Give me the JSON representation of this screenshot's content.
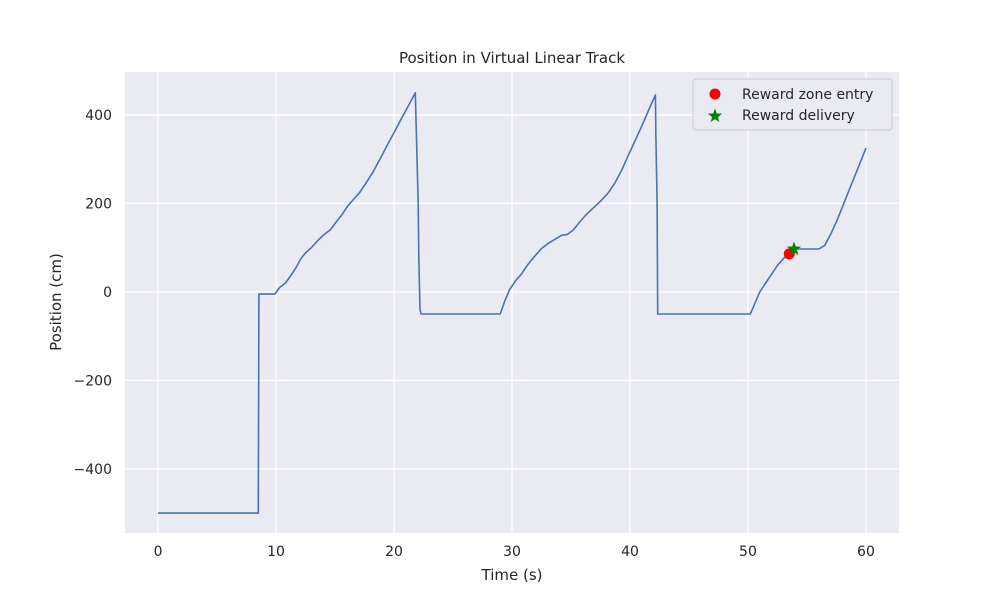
{
  "chart_data": {
    "type": "line",
    "title": "Position in Virtual Linear Track",
    "xlabel": "Time (s)",
    "ylabel": "Position (cm)",
    "xlim": [
      -2.8,
      62.8
    ],
    "ylim": [
      -545,
      497
    ],
    "x_ticks": [
      0,
      10,
      20,
      30,
      40,
      50,
      60
    ],
    "y_ticks": [
      -400,
      -200,
      0,
      200,
      400
    ],
    "x_tick_labels": [
      "0",
      "10",
      "20",
      "30",
      "40",
      "50",
      "60"
    ],
    "y_tick_labels": [
      "−400",
      "−200",
      "0",
      "200",
      "400"
    ],
    "grid": true,
    "background": "#eaeaf2",
    "legend_position": "upper-right",
    "series": [
      {
        "kind": "line",
        "color": "#4c72b0",
        "x": [
          0,
          8.5,
          8.5,
          8.55,
          9.9,
          10.3,
          10.8,
          11.2,
          11.7,
          12.1,
          12.5,
          13.0,
          13.5,
          14.0,
          14.6,
          15.1,
          15.6,
          16.1,
          16.6,
          17.1,
          17.6,
          18.2,
          18.8,
          19.4,
          20.0,
          20.6,
          21.2,
          21.8,
          22.05,
          22.1,
          22.2,
          22.3,
          29.0,
          29.4,
          29.8,
          30.3,
          30.8,
          31.3,
          31.9,
          32.5,
          33.1,
          33.7,
          34.2,
          34.7,
          35.2,
          35.8,
          36.3,
          36.9,
          37.5,
          38.1,
          38.7,
          39.3,
          39.8,
          40.4,
          41.0,
          41.6,
          42.15,
          42.2,
          42.3,
          42.35,
          50.2,
          50.6,
          51.0,
          51.5,
          52.0,
          52.5,
          53.0,
          53.5,
          53.9,
          54.5,
          55.3,
          56.0,
          56.5,
          57.0,
          57.6,
          58.2,
          58.8,
          59.4,
          60.0
        ],
        "y": [
          -500,
          -500,
          -500,
          -5,
          -5,
          10,
          20,
          35,
          55,
          75,
          88,
          100,
          115,
          128,
          140,
          158,
          175,
          195,
          210,
          225,
          245,
          270,
          300,
          330,
          360,
          390,
          420,
          450,
          200,
          80,
          -40,
          -50,
          -50,
          -20,
          5,
          25,
          40,
          60,
          80,
          98,
          110,
          120,
          128,
          130,
          140,
          160,
          175,
          190,
          205,
          222,
          245,
          275,
          305,
          340,
          375,
          412,
          445,
          350,
          200,
          -50,
          -50,
          -25,
          0,
          20,
          40,
          60,
          75,
          88,
          97,
          97,
          97,
          97,
          105,
          130,
          165,
          205,
          245,
          285,
          325
        ]
      }
    ],
    "markers": [
      {
        "name": "Reward zone entry",
        "kind": "circle",
        "color": "#ff0000",
        "x": [
          53.5
        ],
        "y": [
          86
        ]
      },
      {
        "name": "Reward delivery",
        "kind": "star",
        "color": "#008000",
        "x": [
          53.9
        ],
        "y": [
          97
        ]
      }
    ]
  }
}
